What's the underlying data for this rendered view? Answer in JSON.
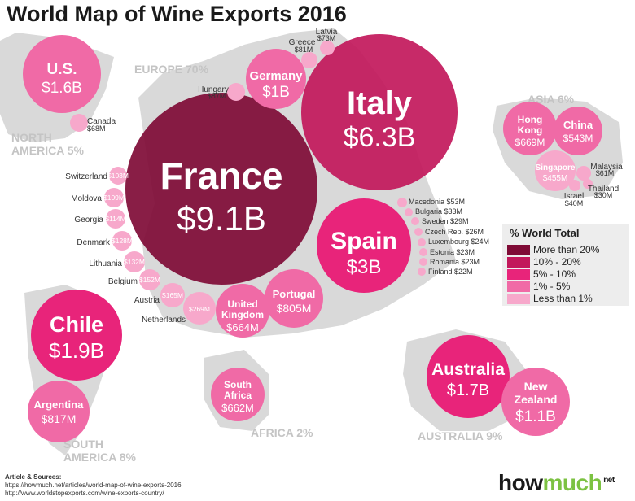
{
  "title": "World Map of Wine Exports 2016",
  "regions": {
    "europe": "EUROPE 70%",
    "asia": "ASIA 6%",
    "north_america_1": "NORTH",
    "north_america_2": "AMERICA 5%",
    "south_america_1": "SOUTH",
    "south_america_2": "AMERICA 8%",
    "africa": "AFRICA 2%",
    "australia": "AUSTRALIA 9%"
  },
  "countries": {
    "france": {
      "name": "France",
      "value": "$9.1B"
    },
    "italy": {
      "name": "Italy",
      "value": "$6.3B"
    },
    "spain": {
      "name": "Spain",
      "value": "$3B"
    },
    "chile": {
      "name": "Chile",
      "value": "$1.9B"
    },
    "australia": {
      "name": "Australia",
      "value": "$1.7B"
    },
    "us": {
      "name": "U.S.",
      "value": "$1.6B"
    },
    "new_zealand_1": "New",
    "new_zealand_2": "Zealand",
    "new_zealand_value": "$1.1B",
    "germany": {
      "name": "Germany",
      "value": "$1B"
    },
    "argentina": {
      "name": "Argentina",
      "value": "$817M"
    },
    "portugal": {
      "name": "Portugal",
      "value": "$805M"
    },
    "hong_kong_1": "Hong",
    "hong_kong_2": "Kong",
    "hong_kong_value": "$669M",
    "united_kingdom_1": "United",
    "united_kingdom_2": "Kingdom",
    "united_kingdom_value": "$664M",
    "south_africa_1": "South",
    "south_africa_2": "Africa",
    "south_africa_value": "$662M",
    "china": {
      "name": "China",
      "value": "$543M"
    },
    "singapore": {
      "name": "Singapore",
      "value": "$455M"
    },
    "netherlands": {
      "name": "Netherlands",
      "value": "$269M"
    },
    "austria": {
      "name": "Austria",
      "value": "$165M"
    },
    "belgium": {
      "name": "Belgium",
      "value": "$152M"
    },
    "lithuania": {
      "name": "Lithuania",
      "value": "$132M"
    },
    "denmark": {
      "name": "Denmark",
      "value": "$128M"
    },
    "georgia": {
      "name": "Georgia",
      "value": "$114M"
    },
    "moldova": {
      "name": "Moldova",
      "value": "$109M"
    },
    "switzerland": {
      "name": "Switzerland",
      "value": "$103M"
    },
    "hungary": {
      "name": "Hungary",
      "value": "$87M"
    },
    "greece": {
      "name": "Greece",
      "value": "$81M"
    },
    "latvia": {
      "name": "Latvia",
      "value": "$73M"
    },
    "canada": {
      "name": "Canada",
      "value": "$68M"
    },
    "malaysia": {
      "name": "Malaysia",
      "value": "$61M"
    },
    "israel": {
      "name": "Israel",
      "value": "$40M"
    },
    "thailand": {
      "name": "Thailand",
      "value": "$30M"
    }
  },
  "small_list": [
    "Macedonia $53M",
    "Bulgaria $33M",
    "Sweden $29M",
    "Czech Rep. $26M",
    "Luxembourg $24M",
    "Estonia $23M",
    "Romania $23M",
    "Finland $22M"
  ],
  "legend": {
    "title": "% World Total",
    "items": [
      {
        "label": "More than 20%",
        "color": "#7f0b36"
      },
      {
        "label": "10% - 20%",
        "color": "#c2185b"
      },
      {
        "label": "5% - 10%",
        "color": "#e8247a"
      },
      {
        "label": "1% - 5%",
        "color": "#f06aa6"
      },
      {
        "label": "Less than 1%",
        "color": "#f7a8cb"
      }
    ]
  },
  "sources": {
    "heading": "Article & Sources:",
    "line1": "https://howmuch.net/articles/world-map-of-wine-exports-2016",
    "line2": "http://www.worldstopexports.com/wine-exports-country/"
  },
  "brand": {
    "part1": "how",
    "part2": "much",
    "part3": "net"
  },
  "colors": {
    "land": "#d9d9d9",
    "gt20": "#7f0b36",
    "10to20": "#c2185b",
    "5to10": "#e8247a",
    "1to5": "#f06aa6",
    "lt1": "#f7a8cb"
  }
}
